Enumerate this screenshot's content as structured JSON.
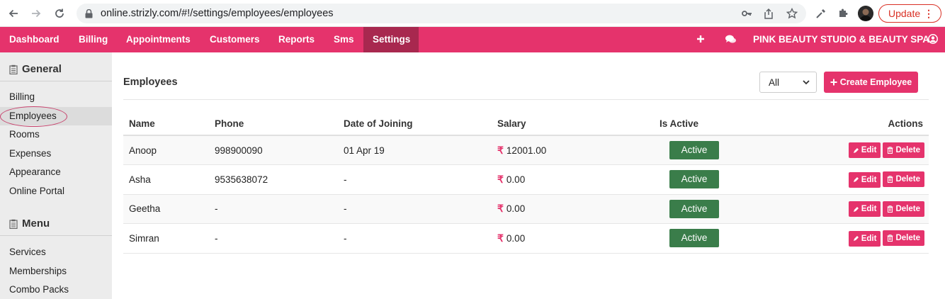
{
  "browser": {
    "url": "online.strizly.com/#!/settings/employees/employees",
    "update_label": "Update"
  },
  "nav": {
    "items": [
      "Dashboard",
      "Billing",
      "Appointments",
      "Customers",
      "Reports",
      "Sms",
      "Settings"
    ],
    "active": "Settings",
    "business_name": "PINK BEAUTY STUDIO & BEAUTY SPA"
  },
  "sidebar": {
    "general_title": "General",
    "general_items": [
      "Billing",
      "Employees",
      "Rooms",
      "Expenses",
      "Appearance",
      "Online Portal"
    ],
    "selected": "Employees",
    "menu_title": "Menu",
    "menu_items": [
      "Services",
      "Memberships",
      "Combo Packs"
    ]
  },
  "main": {
    "title": "Employees",
    "filter_value": "All",
    "create_label": "Create Employee",
    "columns": [
      "Name",
      "Phone",
      "Date of Joining",
      "Salary",
      "Is Active",
      "Actions"
    ],
    "rows": [
      {
        "name": "Anoop",
        "phone": "998900090",
        "doj": "01 Apr 19",
        "salary": "12001.00",
        "status": "Active"
      },
      {
        "name": "Asha",
        "phone": "9535638072",
        "doj": "-",
        "salary": "0.00",
        "status": "Active"
      },
      {
        "name": "Geetha",
        "phone": "-",
        "doj": "-",
        "salary": "0.00",
        "status": "Active"
      },
      {
        "name": "Simran",
        "phone": "-",
        "doj": "-",
        "salary": "0.00",
        "status": "Active"
      }
    ],
    "currency_symbol": "₹",
    "edit_label": "Edit",
    "delete_label": "Delete"
  },
  "colors": {
    "brand": "#e5336c",
    "nav_active": "#a8284f",
    "status_active": "#3a7d4a"
  }
}
